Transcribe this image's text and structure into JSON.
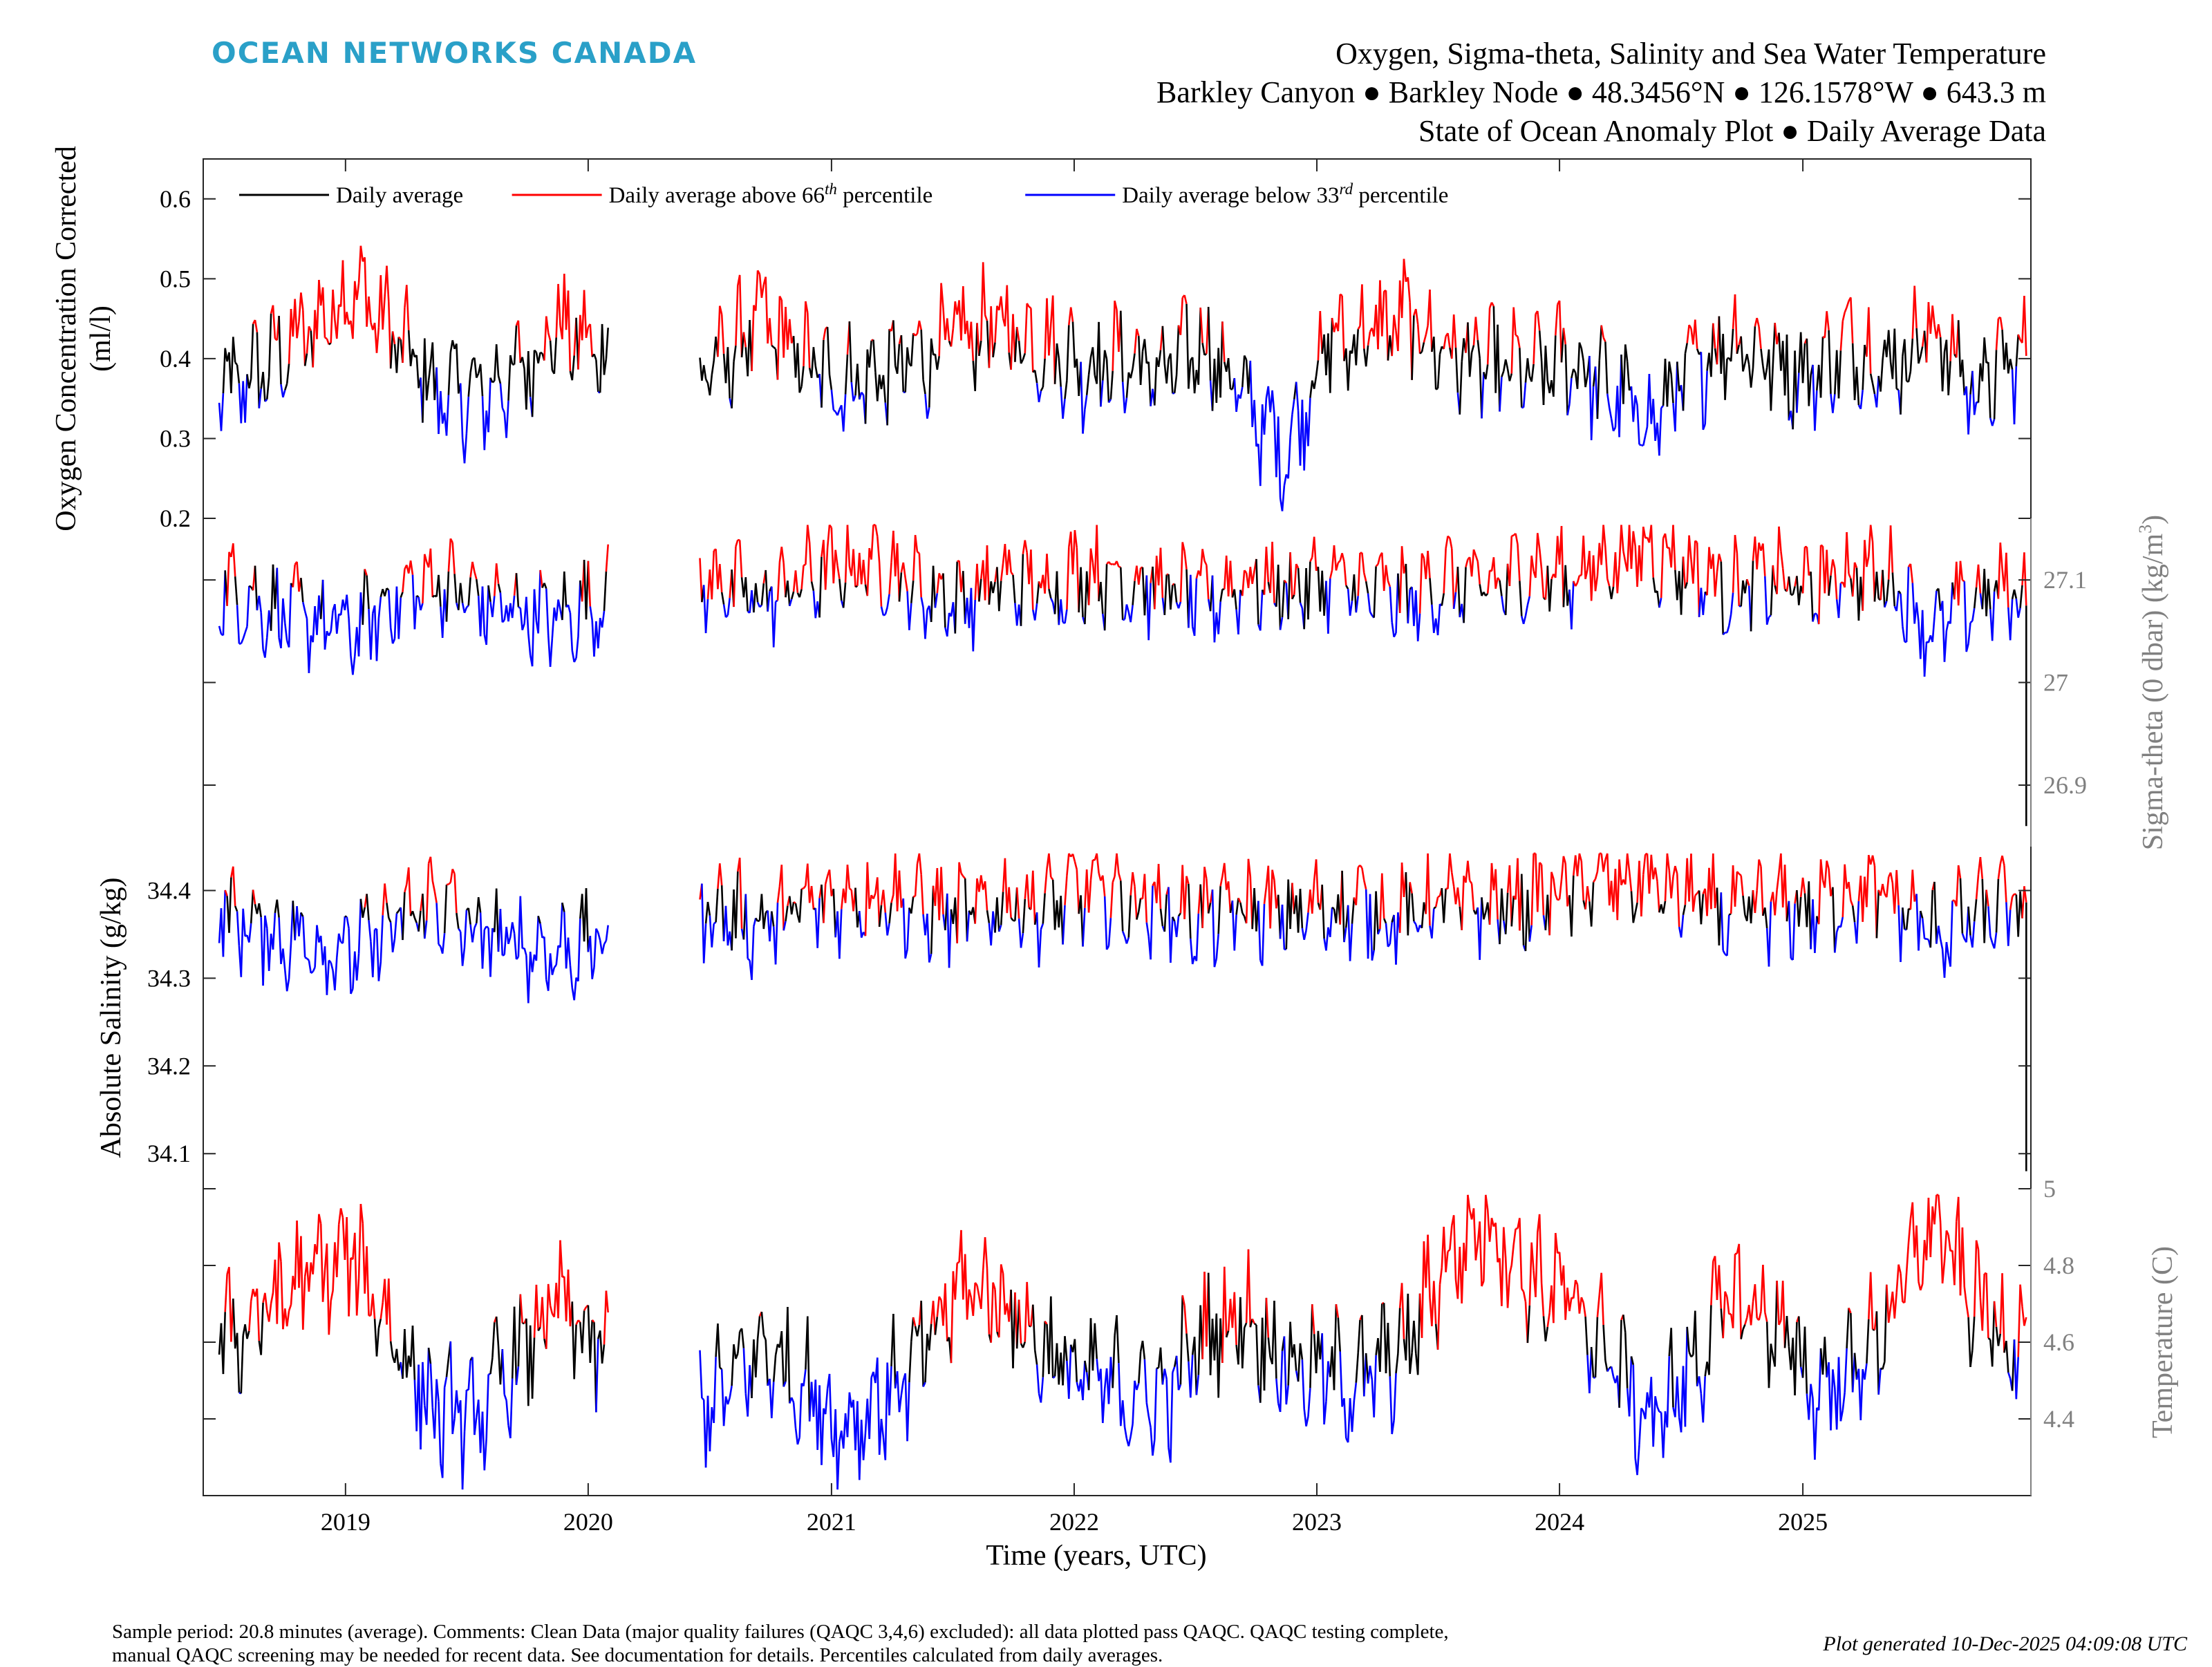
{
  "header": {
    "brand": "OCEAN NETWORKS CANADA",
    "title_lines": [
      "Oxygen, Sigma-theta, Salinity and Sea Water Temperature",
      "Barkley Canyon ● Barkley Node ● 48.3456°N ● 126.1578°W ● 643.3 m",
      "State of Ocean Anomaly Plot ● Daily Average Data"
    ]
  },
  "footer": {
    "note_line1": "Sample period: 20.8 minutes (average). Comments: Clean Data (major quality failures (QAQC 3,4,6) excluded): all data plotted pass QAQC. QAQC testing complete,",
    "note_line2": "manual QAQC screening may be needed for recent data. See documentation for details. Percentiles calculated from daily averages.",
    "generated": "Plot generated 10-Dec-2025 04:09:08 UTC"
  },
  "colors": {
    "normal": "#000000",
    "above": "#ff0000",
    "below": "#0000ff",
    "right_axis": "#808080",
    "brand": "#2aa0c8"
  },
  "chart_data": {
    "type": "line",
    "xlabel": "Time (years, UTC)",
    "x_ticks": [
      "2019",
      "2020",
      "2021",
      "2022",
      "2023",
      "2024",
      "2025"
    ],
    "xlim": [
      "2018-06-01",
      "2025-12-10"
    ],
    "gap": [
      "2020-02-01",
      "2020-06-15"
    ],
    "legend": {
      "placement": "top-left",
      "entries": [
        {
          "label": "Daily average",
          "color": "#000000"
        },
        {
          "label": "Daily average above 66",
          "sup": "th",
          "suffix": " percentile",
          "color": "#ff0000"
        },
        {
          "label": "Daily average below 33",
          "sup": "rd",
          "suffix": " percentile",
          "color": "#0000ff"
        }
      ]
    },
    "panels": [
      {
        "name": "oxygen",
        "ylabel_lines": [
          "Oxygen Concentration Corrected",
          "(ml/l)"
        ],
        "axis_side": "left",
        "ylim": [
          0.2,
          0.65
        ],
        "ticks": [
          "0.2",
          "0.3",
          "0.4",
          "0.5",
          "0.6"
        ],
        "monthly_x": [
          "2018-07",
          "2018-09",
          "2018-11",
          "2019-01",
          "2019-03",
          "2019-05",
          "2019-07",
          "2019-09",
          "2019-11",
          "2020-01",
          "2020-07",
          "2020-09",
          "2020-11",
          "2021-01",
          "2021-03",
          "2021-05",
          "2021-07",
          "2021-09",
          "2021-11",
          "2022-01",
          "2022-03",
          "2022-05",
          "2022-07",
          "2022-09",
          "2022-11",
          "2023-01",
          "2023-03",
          "2023-05",
          "2023-07",
          "2023-09",
          "2023-11",
          "2024-01",
          "2024-03",
          "2024-05",
          "2024-07",
          "2024-09",
          "2024-11",
          "2025-01",
          "2025-03",
          "2025-05",
          "2025-07",
          "2025-09",
          "2025-11"
        ],
        "values": [
          0.36,
          0.4,
          0.44,
          0.49,
          0.43,
          0.36,
          0.35,
          0.38,
          0.44,
          0.41,
          0.39,
          0.45,
          0.4,
          0.37,
          0.38,
          0.4,
          0.43,
          0.44,
          0.42,
          0.39,
          0.4,
          0.38,
          0.42,
          0.35,
          0.28,
          0.42,
          0.43,
          0.45,
          0.41,
          0.39,
          0.38,
          0.4,
          0.36,
          0.32,
          0.38,
          0.43,
          0.4,
          0.38,
          0.42,
          0.39,
          0.44,
          0.36,
          0.4
        ],
        "p66": 0.42,
        "p33": 0.36
      },
      {
        "name": "sigma-theta",
        "ylabel_lines": [
          "Sigma-theta (0 dbar) (kg/m",
          "3",
          ")"
        ],
        "axis_side": "right",
        "ylim": [
          26.84,
          27.16
        ],
        "ticks": [
          "26.9",
          "27",
          "27.1"
        ],
        "monthly_x": [
          "2018-07",
          "2018-09",
          "2018-11",
          "2019-01",
          "2019-03",
          "2019-05",
          "2019-07",
          "2019-09",
          "2019-11",
          "2020-01",
          "2020-07",
          "2020-09",
          "2020-11",
          "2021-01",
          "2021-03",
          "2021-05",
          "2021-07",
          "2021-09",
          "2021-11",
          "2022-01",
          "2022-03",
          "2022-05",
          "2022-07",
          "2022-09",
          "2022-11",
          "2023-01",
          "2023-03",
          "2023-05",
          "2023-07",
          "2023-09",
          "2023-11",
          "2024-01",
          "2024-03",
          "2024-05",
          "2024-07",
          "2024-09",
          "2024-11",
          "2025-01",
          "2025-03",
          "2025-05",
          "2025-07",
          "2025-09",
          "2025-11"
        ],
        "values": [
          27.09,
          27.07,
          27.06,
          27.05,
          27.08,
          27.1,
          27.08,
          27.07,
          27.06,
          27.08,
          27.1,
          27.08,
          27.1,
          27.11,
          27.12,
          27.09,
          27.08,
          27.1,
          27.09,
          27.11,
          27.1,
          27.09,
          27.08,
          27.1,
          27.09,
          27.1,
          27.09,
          27.08,
          27.1,
          27.09,
          27.11,
          27.1,
          27.12,
          27.13,
          27.11,
          27.09,
          27.1,
          27.09,
          27.11,
          27.1,
          27.05,
          27.08,
          27.09
        ],
        "p66": 27.095,
        "p33": 27.08,
        "final_drop_to": 26.86
      },
      {
        "name": "salinity",
        "ylabel_lines": [
          "Absolute Salinity (g/kg)"
        ],
        "axis_side": "left",
        "ylim": [
          34.06,
          34.45
        ],
        "ticks": [
          "34.1",
          "34.2",
          "34.3",
          "34.4"
        ],
        "monthly_x": [
          "2018-07",
          "2018-09",
          "2018-11",
          "2019-01",
          "2019-03",
          "2019-05",
          "2019-07",
          "2019-09",
          "2019-11",
          "2020-01",
          "2020-07",
          "2020-09",
          "2020-11",
          "2021-01",
          "2021-03",
          "2021-05",
          "2021-07",
          "2021-09",
          "2021-11",
          "2022-01",
          "2022-03",
          "2022-05",
          "2022-07",
          "2022-09",
          "2022-11",
          "2023-01",
          "2023-03",
          "2023-05",
          "2023-07",
          "2023-09",
          "2023-11",
          "2024-01",
          "2024-03",
          "2024-05",
          "2024-07",
          "2024-09",
          "2024-11",
          "2025-01",
          "2025-03",
          "2025-05",
          "2025-07",
          "2025-09",
          "2025-11"
        ],
        "values": [
          34.37,
          34.35,
          34.34,
          34.33,
          34.36,
          34.39,
          34.35,
          34.34,
          34.33,
          34.34,
          34.38,
          34.36,
          34.38,
          34.39,
          34.4,
          34.38,
          34.37,
          34.39,
          34.38,
          34.4,
          34.39,
          34.38,
          34.37,
          34.38,
          34.37,
          34.38,
          34.38,
          34.37,
          34.39,
          34.38,
          34.39,
          34.4,
          34.41,
          34.41,
          34.39,
          34.37,
          34.38,
          34.38,
          34.4,
          34.39,
          34.35,
          34.37,
          34.38
        ],
        "p66": 34.385,
        "p33": 34.365,
        "final_drop_to": 34.08
      },
      {
        "name": "temperature",
        "ylabel_lines": [
          "Temperature (C)"
        ],
        "axis_side": "right",
        "ylim": [
          4.2,
          5.0
        ],
        "ticks": [
          "4.4",
          "4.6",
          "4.8",
          "5"
        ],
        "monthly_x": [
          "2018-07",
          "2018-09",
          "2018-11",
          "2019-01",
          "2019-03",
          "2019-05",
          "2019-07",
          "2019-09",
          "2019-11",
          "2020-01",
          "2020-07",
          "2020-09",
          "2020-11",
          "2021-01",
          "2021-03",
          "2021-05",
          "2021-07",
          "2021-09",
          "2021-11",
          "2022-01",
          "2022-03",
          "2022-05",
          "2022-07",
          "2022-09",
          "2022-11",
          "2023-01",
          "2023-03",
          "2023-05",
          "2023-07",
          "2023-09",
          "2023-11",
          "2024-01",
          "2024-03",
          "2024-05",
          "2024-07",
          "2024-09",
          "2024-11",
          "2025-01",
          "2025-03",
          "2025-05",
          "2025-07",
          "2025-09",
          "2025-11"
        ],
        "values": [
          4.62,
          4.7,
          4.78,
          4.82,
          4.62,
          4.42,
          4.4,
          4.55,
          4.7,
          4.58,
          4.45,
          4.58,
          4.5,
          4.38,
          4.45,
          4.55,
          4.75,
          4.72,
          4.58,
          4.5,
          4.48,
          4.45,
          4.62,
          4.68,
          4.55,
          4.52,
          4.5,
          4.58,
          4.82,
          4.92,
          4.78,
          4.7,
          4.58,
          4.38,
          4.52,
          4.72,
          4.66,
          4.48,
          4.52,
          4.68,
          4.92,
          4.7,
          4.62
        ],
        "p66": 4.65,
        "p33": 4.53
      }
    ]
  }
}
